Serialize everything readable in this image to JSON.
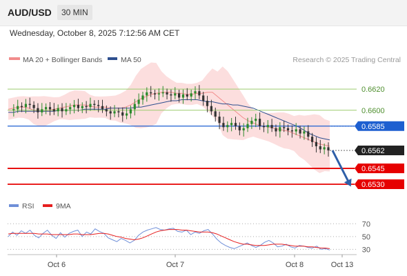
{
  "header": {
    "pair": "AUD/USD",
    "timeframe": "30 MIN",
    "datetime": "Wednesday, October 8, 2025 7:12:56 AM CET"
  },
  "legend": {
    "ma20": "MA 20 + Bollinger Bands",
    "ma50": "MA 50",
    "ma20_color": "#f28c8c",
    "ma50_color": "#2e4f8f",
    "source": "Research © 2025 Trading Central"
  },
  "rsi_legend": {
    "rsi": "RSI",
    "ma": "9MA",
    "rsi_color": "#6f8fd8",
    "ma_color": "#e61e1e"
  },
  "colors": {
    "resistance": "#9ccc6f",
    "pivot": "#1d5fd0",
    "support": "#e60000",
    "current": "#222222",
    "bull": "#2c8a2c",
    "bear": "#333333",
    "band": "#fcdede",
    "arrow": "#2e5fa8"
  },
  "chart_data": [
    {
      "type": "candlestick",
      "ylim": [
        0.6515,
        0.6641
      ],
      "x_ticks": [
        "Oct 6",
        "Oct 7",
        "Oct 8",
        "Oct 13"
      ],
      "levels": [
        {
          "value": 0.662,
          "label": "0.6620",
          "kind": "resistance"
        },
        {
          "value": 0.66,
          "label": "0.6600",
          "kind": "resistance"
        },
        {
          "value": 0.6585,
          "label": "0.6585",
          "kind": "pivot"
        },
        {
          "value": 0.6562,
          "label": "0.6562",
          "kind": "current"
        },
        {
          "value": 0.6545,
          "label": "0.6545",
          "kind": "support"
        },
        {
          "value": 0.653,
          "label": "0.6530",
          "kind": "support"
        }
      ],
      "series": [
        {
          "name": "MA 20 + Bollinger Bands",
          "values": [
            0.6601,
            0.6602,
            0.6603,
            0.6603,
            0.6602,
            0.66,
            0.6599,
            0.6599,
            0.66,
            0.6601,
            0.6602,
            0.6603,
            0.6604,
            0.6605,
            0.6605,
            0.6605,
            0.6604,
            0.6603,
            0.6603,
            0.6603,
            0.6602,
            0.6602,
            0.6602,
            0.6603,
            0.6605,
            0.6608,
            0.6611,
            0.6613,
            0.6615,
            0.6616,
            0.6617,
            0.6617,
            0.6617,
            0.6616,
            0.6616,
            0.6615,
            0.6615,
            0.6616,
            0.6616,
            0.6617,
            0.6617,
            0.6613,
            0.6609,
            0.6605,
            0.6601,
            0.6597,
            0.6593,
            0.659,
            0.6588,
            0.6586,
            0.6585,
            0.6584,
            0.6583,
            0.6582,
            0.6581,
            0.658,
            0.6578,
            0.6576,
            0.6574,
            0.6572,
            0.657,
            0.6568,
            0.6567,
            0.6566
          ]
        },
        {
          "name": "MA 50",
          "values": [
            0.6598,
            0.6598,
            0.6599,
            0.6599,
            0.6599,
            0.6599,
            0.6599,
            0.6599,
            0.6599,
            0.6599,
            0.66,
            0.66,
            0.66,
            0.66,
            0.66,
            0.6601,
            0.6601,
            0.6601,
            0.6601,
            0.6601,
            0.6602,
            0.6602,
            0.6602,
            0.6602,
            0.6602,
            0.6603,
            0.6603,
            0.6604,
            0.6605,
            0.6606,
            0.6607,
            0.6608,
            0.6609,
            0.6609,
            0.661,
            0.661,
            0.661,
            0.661,
            0.6609,
            0.6608,
            0.6608,
            0.6607,
            0.6606,
            0.6606,
            0.6605,
            0.6605,
            0.6604,
            0.6603,
            0.6602,
            0.66,
            0.6598,
            0.6596,
            0.6594,
            0.6592,
            0.659,
            0.6588,
            0.6586,
            0.6584,
            0.6581,
            0.6578,
            0.6576,
            0.6574,
            0.6573,
            0.6572
          ]
        },
        {
          "name": "Price",
          "values": [
            0.66,
            0.6601,
            0.6604,
            0.6603,
            0.6606,
            0.6605,
            0.6602,
            0.6598,
            0.6601,
            0.6603,
            0.6601,
            0.6599,
            0.6602,
            0.6599,
            0.6601,
            0.6603,
            0.6605,
            0.6602,
            0.6604,
            0.6603,
            0.6606,
            0.6605,
            0.6604,
            0.6601,
            0.6599,
            0.6597,
            0.6599,
            0.6598,
            0.6595,
            0.6597,
            0.6601,
            0.6606,
            0.661,
            0.6614,
            0.6617,
            0.6616,
            0.6615,
            0.6616,
            0.6617,
            0.6615,
            0.6614,
            0.6616,
            0.6612,
            0.6615,
            0.6613,
            0.6616,
            0.6618,
            0.6614,
            0.6609,
            0.6604,
            0.6599,
            0.6594,
            0.6588,
            0.6584,
            0.6586,
            0.6588,
            0.6585,
            0.6581,
            0.6583,
            0.6587,
            0.659,
            0.6592,
            0.6585,
            0.6584,
            0.6586,
            0.6583,
            0.658,
            0.6584,
            0.6583,
            0.6581,
            0.658,
            0.6582,
            0.6578,
            0.658,
            0.6575,
            0.657,
            0.6566,
            0.6563,
            0.6565,
            0.6562
          ]
        }
      ]
    },
    {
      "type": "line",
      "title": "RSI",
      "ylim": [
        25,
        80
      ],
      "y_ticks": [
        30,
        50,
        70
      ],
      "series": [
        {
          "name": "RSI",
          "values": [
            50,
            57,
            52,
            59,
            55,
            60,
            52,
            48,
            55,
            60,
            52,
            47,
            56,
            49,
            55,
            58,
            60,
            50,
            57,
            54,
            62,
            58,
            55,
            48,
            45,
            42,
            47,
            44,
            40,
            44,
            52,
            57,
            60,
            62,
            64,
            61,
            60,
            62,
            63,
            58,
            57,
            60,
            53,
            57,
            55,
            59,
            61,
            54,
            46,
            40,
            36,
            33,
            31,
            34,
            37,
            40,
            36,
            33,
            36,
            41,
            44,
            40,
            34,
            35,
            38,
            34,
            32,
            36,
            35,
            33,
            32,
            35,
            30,
            31,
            29
          ]
        },
        {
          "name": "9MA",
          "values": [
            54,
            55,
            55,
            55,
            55,
            55,
            55,
            54,
            54,
            54,
            53,
            53,
            53,
            53,
            53,
            54,
            54,
            53,
            53,
            53,
            54,
            55,
            55,
            54,
            52,
            50,
            49,
            47,
            46,
            45,
            46,
            48,
            51,
            54,
            57,
            59,
            60,
            61,
            61,
            61,
            60,
            60,
            59,
            58,
            57,
            57,
            57,
            56,
            54,
            51,
            48,
            45,
            42,
            40,
            38,
            38,
            37,
            36,
            36,
            36,
            37,
            38,
            38,
            38,
            37,
            36,
            35,
            35,
            35,
            34,
            34,
            33,
            32,
            32,
            31
          ]
        }
      ]
    }
  ]
}
